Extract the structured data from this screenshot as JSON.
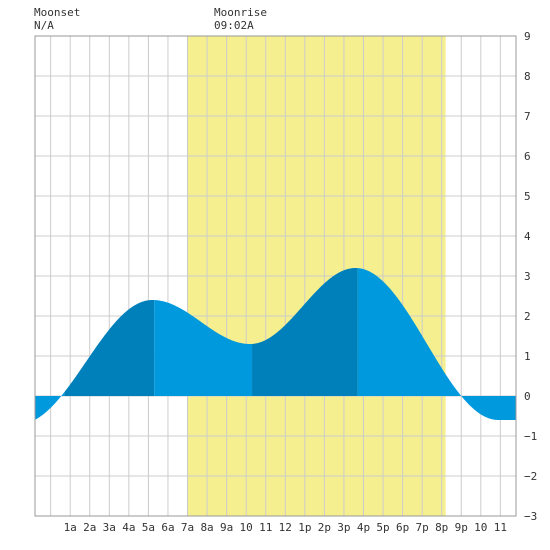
{
  "header": {
    "moonset_label": "Moonset",
    "moonset_value": "N/A",
    "moonrise_label": "Moonrise",
    "moonrise_value": "09:02A"
  },
  "colors": {
    "background": "#ffffff",
    "plot_background": "#ffffff",
    "grid": "#cccccc",
    "daylight": "#f5ef8f",
    "tide_light": "#0099dd",
    "tide_dark": "#0080bb",
    "text": "#333333"
  },
  "chart_data": {
    "type": "area",
    "title": "",
    "xlabel": "",
    "ylabel": "",
    "xlim": [
      -0.8,
      23.8
    ],
    "ylim": [
      -3,
      9
    ],
    "x_tick_labels": [
      "1a",
      "2a",
      "3a",
      "4a",
      "5a",
      "6a",
      "7a",
      "8a",
      "9a",
      "10",
      "11",
      "12",
      "1p",
      "2p",
      "3p",
      "4p",
      "5p",
      "6p",
      "7p",
      "8p",
      "9p",
      "10",
      "11"
    ],
    "y_ticks": [
      -3,
      -2,
      -1,
      0,
      1,
      2,
      3,
      4,
      5,
      6,
      7,
      8,
      9
    ],
    "y_tick_labels": [
      "−3",
      "−2",
      "−1",
      "0",
      "1",
      "2",
      "3",
      "4",
      "5",
      "6",
      "7",
      "8",
      "9"
    ],
    "grid": true,
    "daylight_start_hour": 7.0,
    "daylight_end_hour": 20.2,
    "tide_extremes": [
      {
        "time_hours": -1.6,
        "height": -0.7
      },
      {
        "time_hours": 5.2,
        "height": 2.4
      },
      {
        "time_hours": 10.2,
        "height": 1.3
      },
      {
        "time_hours": 15.6,
        "height": 3.2
      },
      {
        "time_hours": 22.9,
        "height": -0.6
      }
    ],
    "series": [
      {
        "type": "tide-height",
        "segments": [
          {
            "start": -0.8,
            "end": 0.7,
            "shade": "light"
          },
          {
            "start": 0.7,
            "end": 5.3,
            "shade": "dark"
          },
          {
            "start": 5.3,
            "end": 10.3,
            "shade": "light"
          },
          {
            "start": 10.3,
            "end": 15.7,
            "shade": "dark"
          },
          {
            "start": 15.7,
            "end": 23.8,
            "shade": "light"
          }
        ]
      }
    ]
  }
}
